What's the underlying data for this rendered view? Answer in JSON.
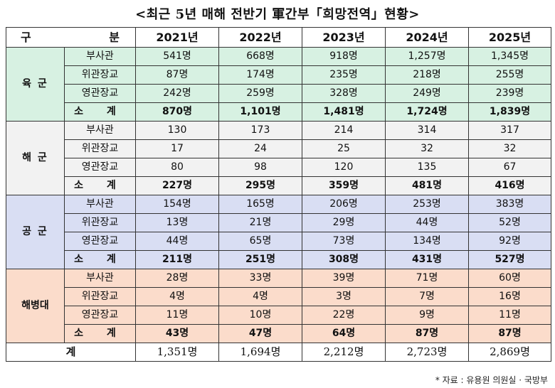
{
  "title": "<최근 5년 매해 전반기 軍간부「희망전역」현황>",
  "header": {
    "category_left": "구",
    "category_right": "분",
    "years": [
      "2021년",
      "2022년",
      "2023년",
      "2024년",
      "2025년"
    ]
  },
  "groups": [
    {
      "branch": "육 군",
      "rows": [
        {
          "label": "부사관",
          "values": [
            "541명",
            "668명",
            "918명",
            "1,257명",
            "1,345명"
          ]
        },
        {
          "label": "위관장교",
          "values": [
            "87명",
            "174명",
            "235명",
            "218명",
            "255명"
          ]
        },
        {
          "label": "영관장교",
          "values": [
            "242명",
            "259명",
            "328명",
            "249명",
            "239명"
          ]
        }
      ],
      "subtotal": {
        "label": "소 계",
        "values": [
          "870명",
          "1,101명",
          "1,481명",
          "1,724명",
          "1,839명"
        ]
      }
    },
    {
      "branch": "해 군",
      "rows": [
        {
          "label": "부사관",
          "values": [
            "130",
            "173",
            "214",
            "314",
            "317"
          ]
        },
        {
          "label": "위관장교",
          "values": [
            "17",
            "24",
            "25",
            "32",
            "32"
          ]
        },
        {
          "label": "영관장교",
          "values": [
            "80",
            "98",
            "120",
            "135",
            "67"
          ]
        }
      ],
      "subtotal": {
        "label": "소 계",
        "values": [
          "227명",
          "295명",
          "359명",
          "481명",
          "416명"
        ]
      }
    },
    {
      "branch": "공 군",
      "rows": [
        {
          "label": "부사관",
          "values": [
            "154명",
            "165명",
            "206명",
            "253명",
            "383명"
          ]
        },
        {
          "label": "위관장교",
          "values": [
            "13명",
            "21명",
            "29명",
            "44명",
            "52명"
          ]
        },
        {
          "label": "영관장교",
          "values": [
            "44명",
            "65명",
            "73명",
            "134명",
            "92명"
          ]
        }
      ],
      "subtotal": {
        "label": "소 계",
        "values": [
          "211명",
          "251명",
          "308명",
          "431명",
          "527명"
        ]
      }
    },
    {
      "branch": "해병대",
      "rows": [
        {
          "label": "부사관",
          "values": [
            "28명",
            "33명",
            "39명",
            "71명",
            "60명"
          ]
        },
        {
          "label": "위관장교",
          "values": [
            "4명",
            "4명",
            "3명",
            "7명",
            "16명"
          ]
        },
        {
          "label": "영관장교",
          "values": [
            "11명",
            "10명",
            "22명",
            "9명",
            "11명"
          ]
        }
      ],
      "subtotal": {
        "label": "소 계",
        "values": [
          "43명",
          "47명",
          "64명",
          "87명",
          "87명"
        ]
      }
    }
  ],
  "total": {
    "label": "계",
    "values": [
      "1,351명",
      "1,694명",
      "2,212명",
      "2,723명",
      "2,869명"
    ]
  },
  "source": "* 자료 : 유용원 의원실 · 국방부",
  "colors": {
    "army": "#d7f1e2",
    "navy": "#f2f2f2",
    "air": "#d9def3",
    "marine": "#fbdccb"
  }
}
